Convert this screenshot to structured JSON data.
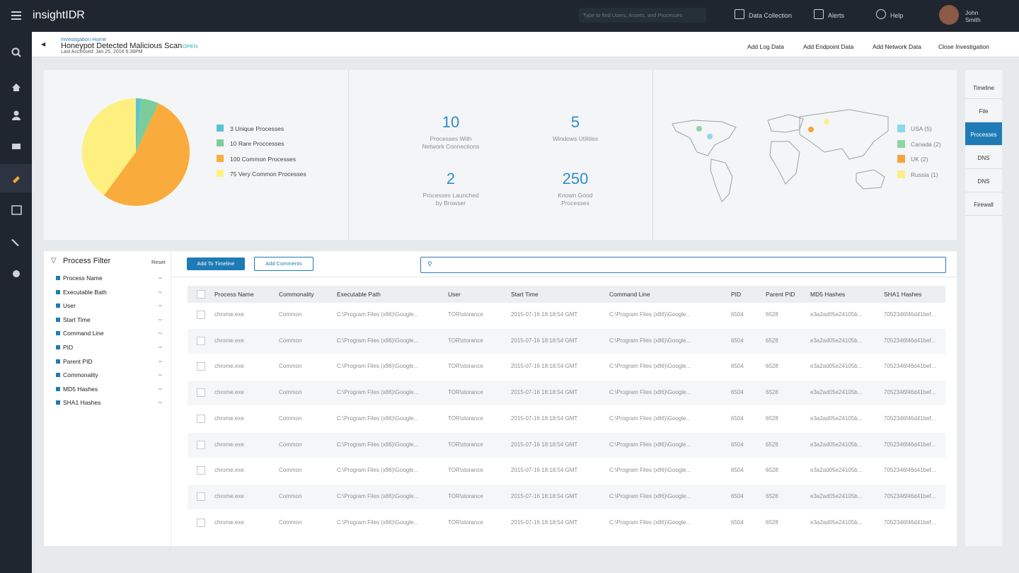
{
  "topbar": {
    "brand": "insightIDR",
    "search_placeholder": "Type to find Users, Assets, and Processes",
    "nav": [
      "Data Collection",
      "Alerts",
      "Help"
    ],
    "user": [
      "John",
      "Smith"
    ]
  },
  "header": {
    "breadcrumb": "Investigation Home",
    "title": "Honeypot Detected Malicious Scan",
    "status": "OPEN",
    "last_accessed": "Last Accessed: Jan 25, 2016 6:38PM",
    "actions": [
      "Add Log Data",
      "Add Endpoint Data",
      "Add Network Data",
      "Close Investigation"
    ]
  },
  "chart_data": {
    "type": "pie",
    "categories": [
      "3 Unique Processes",
      "10 Rare Proccesses",
      "100 Common Processes",
      "75 Very Common Processes"
    ],
    "values": [
      3,
      10,
      100,
      75
    ],
    "colors": [
      "#5bc4d0",
      "#7ccc9c",
      "#f9ab3b",
      "#fdf07f"
    ]
  },
  "stats": [
    {
      "value": 10,
      "label": "Processes With Network Connections"
    },
    {
      "value": 5,
      "label": "Windows Utilities"
    },
    {
      "value": 2,
      "label": "Processes Launched by Browser"
    },
    {
      "value": 250,
      "label": "Known Good Processes"
    }
  ],
  "map_legend": [
    {
      "label": "USA (5)",
      "color": "#8fd8ea"
    },
    {
      "label": "Canada (2)",
      "color": "#8fd3a4"
    },
    {
      "label": "UK (2)",
      "color": "#f7a33c"
    },
    {
      "label": "Russia (1)",
      "color": "#fbef8a"
    }
  ],
  "tabs": {
    "items": [
      "Timeline",
      "File",
      "Processes",
      "DNS",
      "DNS",
      "Firewall"
    ],
    "active": 2
  },
  "filter": {
    "title": "Process Filter",
    "reset": "Reset",
    "items": [
      "Process Name",
      "Executable Bath",
      "User",
      "Start Time",
      "Command Line",
      "PID",
      "Parent PID",
      "Commonality",
      "MD5 Hashes",
      "SHA1 Hashes"
    ]
  },
  "buttons": [
    "Add To Timeline",
    "Add Comments"
  ],
  "table": {
    "columns": [
      "Process Name",
      "Commonality",
      "Executable Path",
      "User",
      "Start Time",
      "Command Line",
      "PID",
      "Parent PID",
      "MD5 Hashes",
      "SHA1 Hashes"
    ],
    "rows": [
      [
        "chrome.exe",
        "Common",
        "C:\\Program Files (x86)\\Google...",
        "TOR\\storance",
        "2015-07-16 18:18:54 GMT",
        "C:\\Program Files (x86)\\Google...",
        "6504",
        "6528",
        "e3a2ad05e24105b...",
        "7052346f46d41bef..."
      ],
      [
        "chrome.exe",
        "Common",
        "C:\\Program Files (x86)\\Google...",
        "TOR\\storance",
        "2015-07-16 18:18:54 GMT",
        "C:\\Program Files (x86)\\Google...",
        "6504",
        "6528",
        "e3a2ad05e24105b...",
        "7052346f46d41bef..."
      ],
      [
        "chrome.exe",
        "Common",
        "C:\\Program Files (x86)\\Google...",
        "TOR\\storance",
        "2015-07-16 18:18:54 GMT",
        "C:\\Program Files (x86)\\Google...",
        "6504",
        "6528",
        "e3a2ad05e24105b...",
        "7052346f46d41bef..."
      ],
      [
        "chrome.exe",
        "Common",
        "C:\\Program Files (x86)\\Google...",
        "TOR\\storance",
        "2015-07-16 18:18:54 GMT",
        "C:\\Program Files (x86)\\Google...",
        "6504",
        "6528",
        "e3a2ad05e24105b...",
        "7052346f46d41bef..."
      ],
      [
        "chrome.exe",
        "Common",
        "C:\\Program Files (x86)\\Google...",
        "TOR\\storance",
        "2015-07-16 18:18:54 GMT",
        "C:\\Program Files (x86)\\Google...",
        "6504",
        "6528",
        "e3a2ad05e24105b...",
        "7052346f46d41bef..."
      ],
      [
        "chrome.exe",
        "Common",
        "C:\\Program Files (x86)\\Google...",
        "TOR\\storance",
        "2015-07-16 18:18:54 GMT",
        "C:\\Program Files (x86)\\Google...",
        "6504",
        "6528",
        "e3a2ad05e24105b...",
        "7052346f46d41bef..."
      ],
      [
        "chrome.exe",
        "Common",
        "C:\\Program Files (x86)\\Google...",
        "TOR\\storance",
        "2015-07-16 18:18:54 GMT",
        "C:\\Program Files (x86)\\Google...",
        "6504",
        "6528",
        "e3a2ad05e24105b...",
        "7052346f46d41bef..."
      ],
      [
        "chrome.exe",
        "Common",
        "C:\\Program Files (x86)\\Google...",
        "TOR\\storance",
        "2015-07-16 18:18:54 GMT",
        "C:\\Program Files (x86)\\Google...",
        "6504",
        "6528",
        "e3a2ad05e24105b...",
        "7052346f46d41bef..."
      ],
      [
        "chrome.exe",
        "Common",
        "C:\\Program Files (x86)\\Google...",
        "TOR\\storance",
        "2015-07-16 18:18:54 GMT",
        "C:\\Program Files (x86)\\Google...",
        "6504",
        "6528",
        "e3a2ad05e24105b...",
        "7052346f46d41bef..."
      ]
    ]
  }
}
